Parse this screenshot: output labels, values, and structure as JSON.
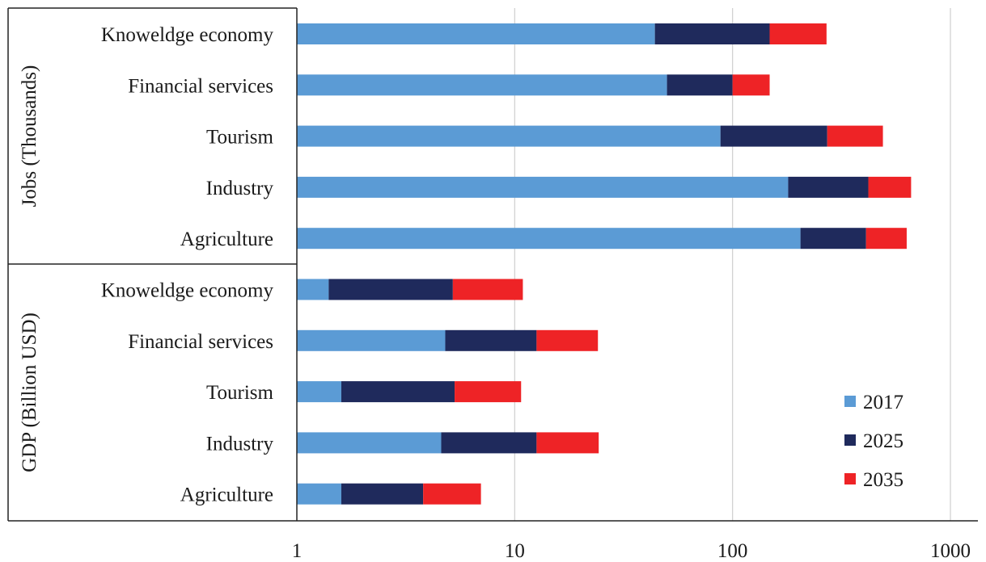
{
  "chart_data": {
    "type": "bar",
    "orientation": "horizontal",
    "stacked": true,
    "x_scale": "log",
    "xlim": [
      1,
      1000
    ],
    "x_ticks": [
      "1",
      "10",
      "100",
      "1000"
    ],
    "grid": true,
    "legend_position": "bottom-right",
    "series": [
      {
        "name": "2017",
        "color": "#5b9bd5"
      },
      {
        "name": "2025",
        "color": "#1f2a5c"
      },
      {
        "name": "2035",
        "color": "#ee2326"
      }
    ],
    "groups": [
      {
        "label": "Jobs (Thousands)",
        "categories": [
          "Knoweldge economy",
          "Financial services",
          "Tourism",
          "Industry",
          "Agriculture"
        ],
        "cumulative_ends": [
          [
            44,
            148,
            270
          ],
          [
            50,
            100,
            148
          ],
          [
            88,
            272,
            490
          ],
          [
            180,
            420,
            660
          ],
          [
            205,
            410,
            630
          ]
        ]
      },
      {
        "label": "GDP (Billion USD)",
        "categories": [
          "Knoweldge economy",
          "Financial services",
          "Tourism",
          "Industry",
          "Agriculture"
        ],
        "cumulative_ends": [
          [
            1.4,
            5.2,
            10.9
          ],
          [
            4.8,
            12.6,
            24.1
          ],
          [
            1.6,
            5.3,
            10.7
          ],
          [
            4.6,
            12.6,
            24.3
          ],
          [
            1.6,
            3.8,
            7.0
          ]
        ]
      }
    ]
  }
}
